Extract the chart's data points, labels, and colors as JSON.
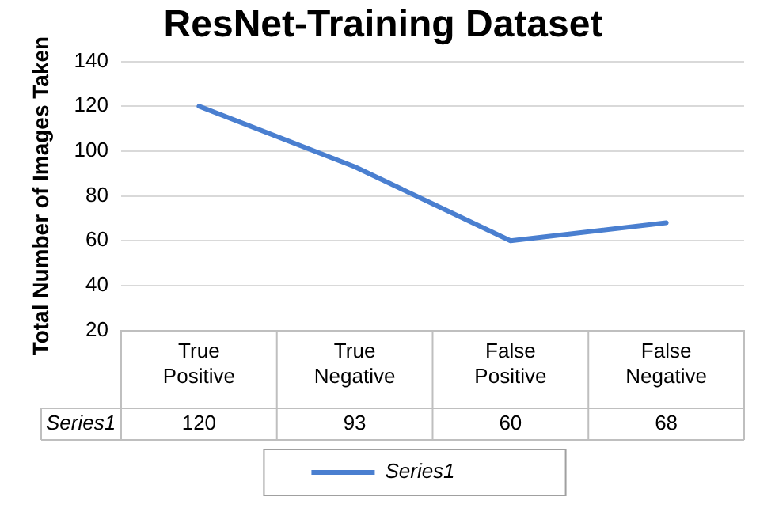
{
  "chart_data": {
    "type": "line",
    "title": "ResNet-Training Dataset",
    "ylabel": "Total Number of Images Taken",
    "categories": [
      "True Positive",
      "True Negative",
      "False Positive",
      "False Negative"
    ],
    "series": [
      {
        "name": "Series1",
        "color": "#4a7fd0",
        "values": [
          120,
          93,
          60,
          68
        ]
      }
    ],
    "ylim": [
      20,
      140
    ],
    "yticks": [
      20,
      40,
      60,
      80,
      100,
      120,
      140
    ],
    "grid": "y",
    "legend": "bottom",
    "marker": "none",
    "data_labels": true
  }
}
